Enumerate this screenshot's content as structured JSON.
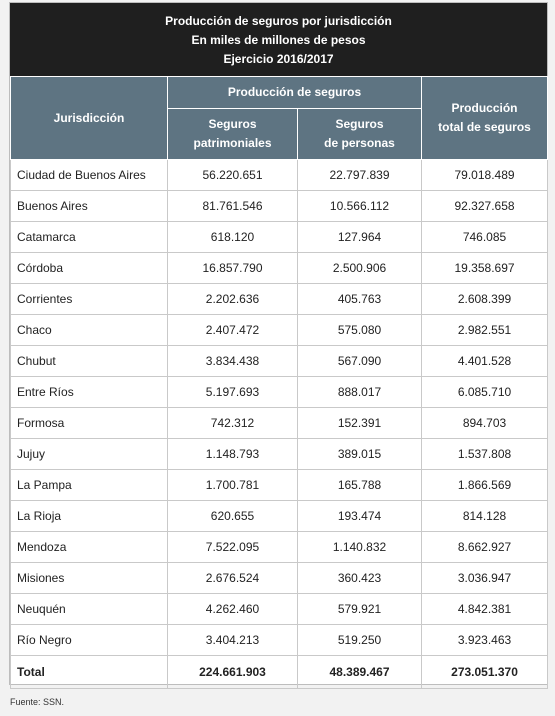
{
  "title": {
    "line1": "Producción de seguros por jurisdicción",
    "line2": "En miles de millones de pesos",
    "line3": "Ejercicio 2016/2017"
  },
  "headers": {
    "jurisdiccion": "Jurisdicción",
    "produccion_group": "Producción de seguros",
    "patrimoniales_l1": "Seguros",
    "patrimoniales_l2": "patrimoniales",
    "personas_l1": "Seguros",
    "personas_l2": "de personas",
    "total_l1": "Producción",
    "total_l2": "total de seguros"
  },
  "rows": [
    {
      "name": "Ciudad de Buenos Aires",
      "patrimoniales": "56.220.651",
      "personas": "22.797.839",
      "total": "79.018.489"
    },
    {
      "name": "Buenos Aires",
      "patrimoniales": "81.761.546",
      "personas": "10.566.112",
      "total": "92.327.658"
    },
    {
      "name": "Catamarca",
      "patrimoniales": "618.120",
      "personas": "127.964",
      "total": "746.085"
    },
    {
      "name": "Córdoba",
      "patrimoniales": "16.857.790",
      "personas": "2.500.906",
      "total": "19.358.697"
    },
    {
      "name": "Corrientes",
      "patrimoniales": "2.202.636",
      "personas": "405.763",
      "total": "2.608.399"
    },
    {
      "name": "Chaco",
      "patrimoniales": "2.407.472",
      "personas": "575.080",
      "total": "2.982.551"
    },
    {
      "name": "Chubut",
      "patrimoniales": "3.834.438",
      "personas": "567.090",
      "total": "4.401.528"
    },
    {
      "name": "Entre Ríos",
      "patrimoniales": "5.197.693",
      "personas": "888.017",
      "total": "6.085.710"
    },
    {
      "name": "Formosa",
      "patrimoniales": "742.312",
      "personas": "152.391",
      "total": "894.703"
    },
    {
      "name": "Jujuy",
      "patrimoniales": "1.148.793",
      "personas": "389.015",
      "total": "1.537.808"
    },
    {
      "name": "La Pampa",
      "patrimoniales": "1.700.781",
      "personas": "165.788",
      "total": "1.866.569"
    },
    {
      "name": "La Rioja",
      "patrimoniales": "620.655",
      "personas": "193.474",
      "total": "814.128"
    },
    {
      "name": "Mendoza",
      "patrimoniales": "7.522.095",
      "personas": "1.140.832",
      "total": "8.662.927"
    },
    {
      "name": "Misiones",
      "patrimoniales": "2.676.524",
      "personas": "360.423",
      "total": "3.036.947"
    },
    {
      "name": "Neuquén",
      "patrimoniales": "4.262.460",
      "personas": "579.921",
      "total": "4.842.381"
    },
    {
      "name": "Río Negro",
      "patrimoniales": "3.404.213",
      "personas": "519.250",
      "total": "3.923.463"
    }
  ],
  "total_row": {
    "name": "Total",
    "patrimoniales": "224.661.903",
    "personas": "48.389.467",
    "total": "273.051.370"
  },
  "source": "Fuente: SSN.",
  "colors": {
    "title_bg": "#1f1f1f",
    "header_bg": "#5e7482",
    "page_bg": "#f2f2f2"
  }
}
